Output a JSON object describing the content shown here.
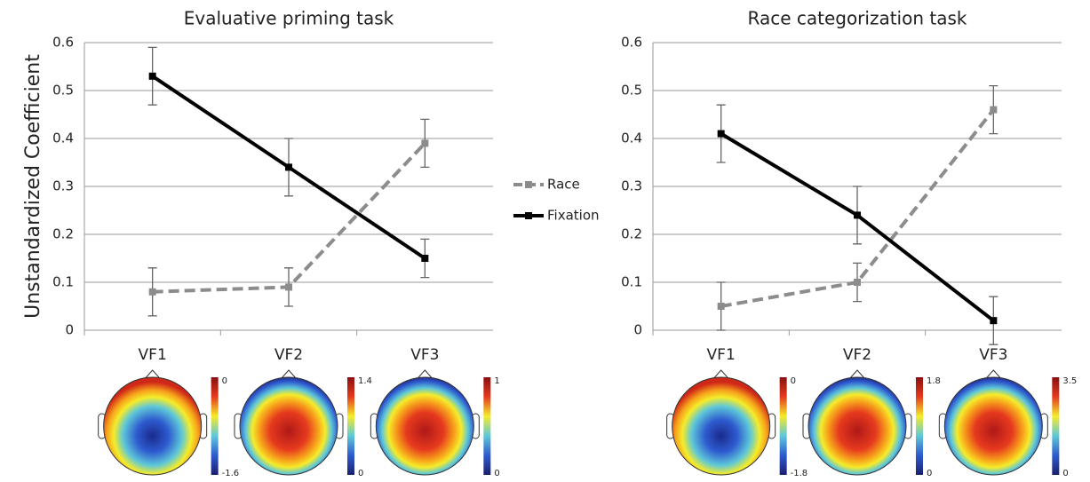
{
  "chart_data": [
    {
      "type": "line",
      "title": "Evaluative priming task",
      "y_label": "Unstandardized Coefficient",
      "categories": [
        "VF1",
        "VF2",
        "VF3"
      ],
      "series": [
        {
          "name": "Race",
          "color": "#8c8c8c",
          "dashed": true,
          "values": [
            0.08,
            0.09,
            0.39
          ],
          "errors": [
            0.05,
            0.04,
            0.05
          ]
        },
        {
          "name": "Fixation",
          "color": "#000000",
          "dashed": false,
          "values": [
            0.53,
            0.34,
            0.15
          ],
          "errors": [
            0.06,
            0.06,
            0.04
          ]
        }
      ],
      "ylim": [
        0,
        0.6
      ],
      "yticks": [
        0,
        0.1,
        0.2,
        0.3,
        0.4,
        0.5,
        0.6
      ],
      "grid": true,
      "topomaps": [
        {
          "max": 0,
          "min": -1.6
        },
        {
          "max": 1.4,
          "min": 0
        },
        {
          "max": 1,
          "min": 0
        }
      ]
    },
    {
      "type": "line",
      "title": "Race categorization task",
      "categories": [
        "VF1",
        "VF2",
        "VF3"
      ],
      "series": [
        {
          "color": "#8c8c8c",
          "dashed": true,
          "values": [
            0.05,
            0.1,
            0.46
          ],
          "errors": [
            0.05,
            0.04,
            0.05
          ]
        },
        {
          "color": "#000000",
          "dashed": false,
          "values": [
            0.41,
            0.24,
            0.02
          ],
          "errors": [
            0.06,
            0.06,
            0.05
          ]
        }
      ],
      "ylim": [
        0,
        0.6
      ],
      "yticks": [
        0,
        0.1,
        0.2,
        0.3,
        0.4,
        0.5,
        0.6
      ],
      "grid": true,
      "topomaps": [
        {
          "max": 0,
          "min": -1.8
        },
        {
          "max": 1.8,
          "min": 0
        },
        {
          "max": 3.5,
          "min": 0
        }
      ]
    }
  ]
}
